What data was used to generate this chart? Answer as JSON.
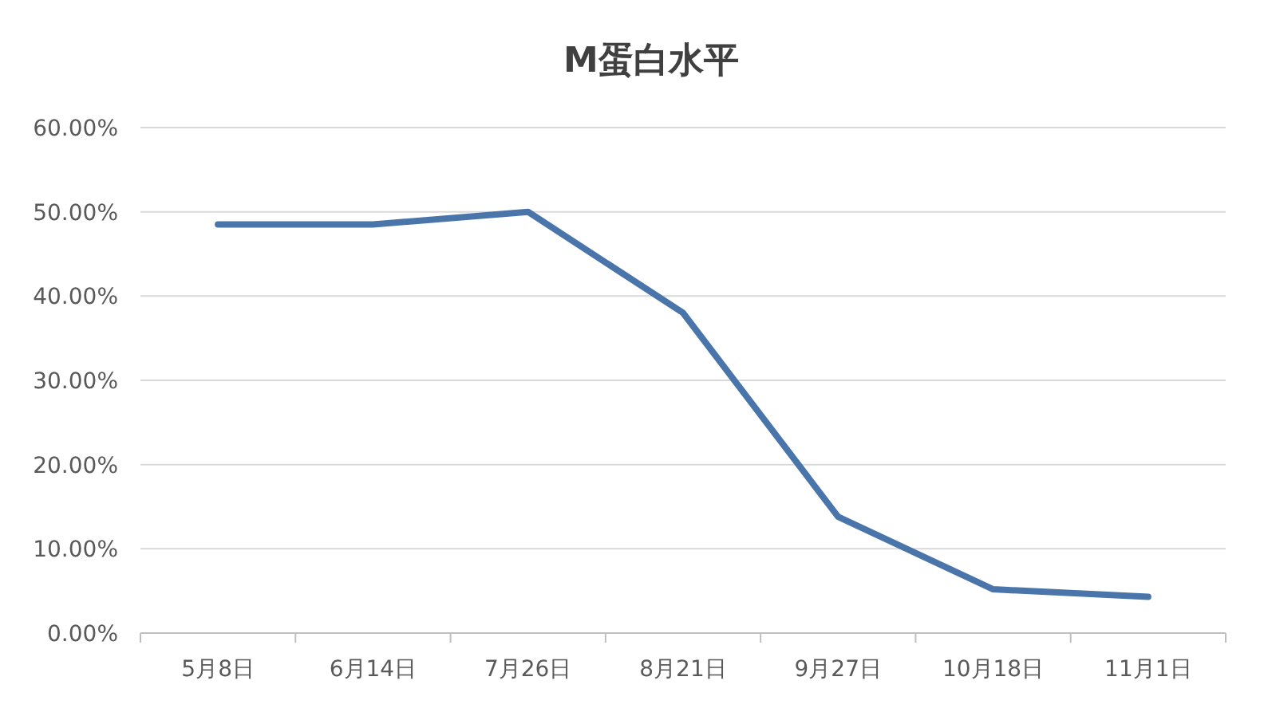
{
  "chart_data": {
    "type": "line",
    "title": "M蛋白水平",
    "categories": [
      "5月8日",
      "6月14日",
      "7月26日",
      "8月21日",
      "9月27日",
      "10月18日",
      "11月1日"
    ],
    "series": [
      {
        "color": "#4a75ab",
        "values": [
          48.5,
          48.5,
          50,
          38,
          13.8,
          5.2,
          4.3
        ]
      }
    ],
    "ylim": [
      0,
      60
    ],
    "yticks": [
      {
        "value": 0,
        "label": "0.00%"
      },
      {
        "value": 10,
        "label": "10.00%"
      },
      {
        "value": 20,
        "label": "20.00%"
      },
      {
        "value": 30,
        "label": "30.00%"
      },
      {
        "value": 40,
        "label": "40.00%"
      },
      {
        "value": 50,
        "label": "50.00%"
      },
      {
        "value": 60,
        "label": "60.00%"
      }
    ],
    "grid": "y",
    "marker": "none",
    "line_style": "solid"
  }
}
